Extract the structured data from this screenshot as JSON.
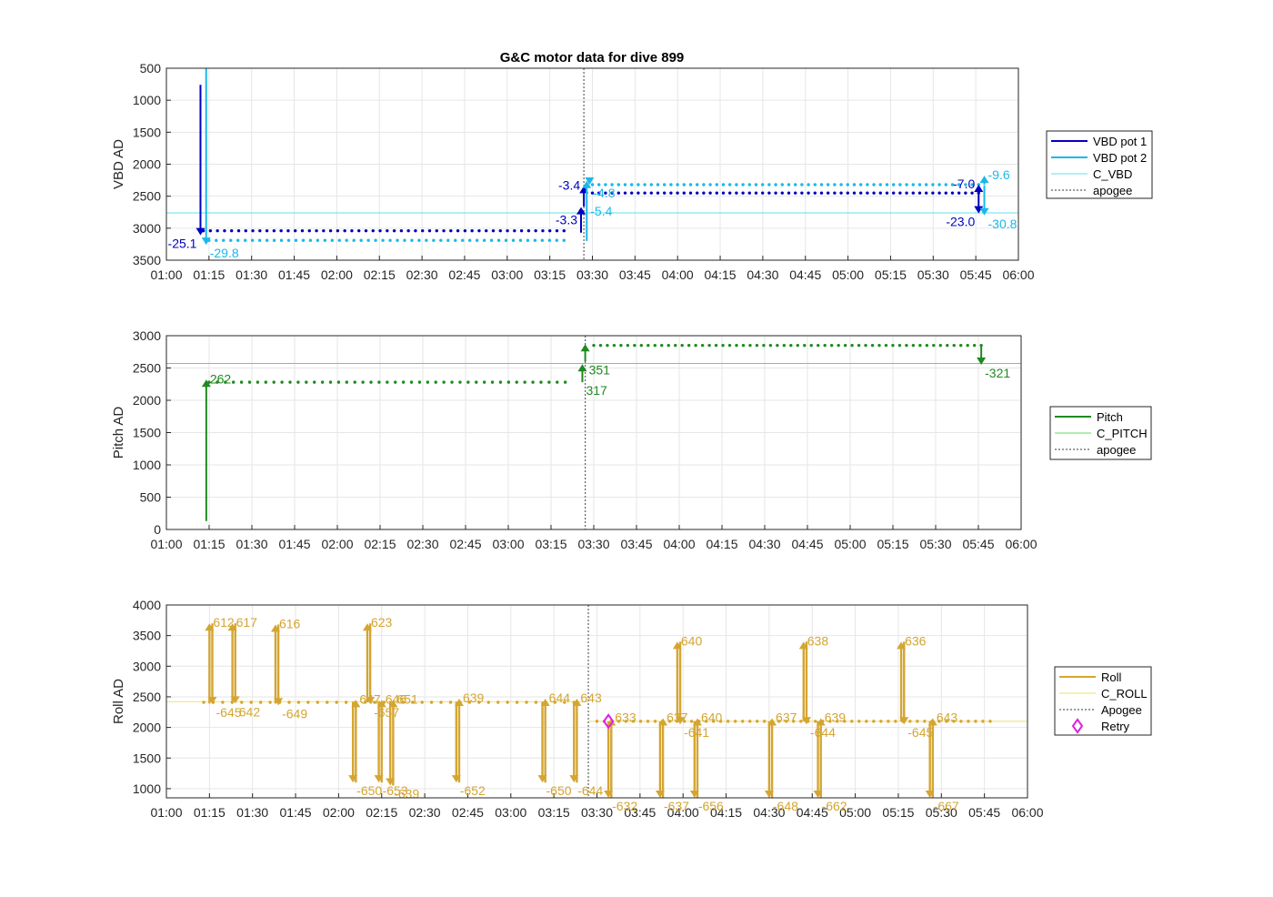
{
  "figure": {
    "title": "G&C motor data for dive 899"
  },
  "colors": {
    "vbd1": "#0000c0",
    "vbd2": "#1ab8ea",
    "c_vbd": "#60e0e8",
    "pitch": "#1f8a1f",
    "c_pitch": "#60dc60",
    "roll": "#d4a531",
    "c_roll": "#f0e58a",
    "retry": "#e020e0",
    "apogee": "#606060"
  },
  "chart_data": [
    {
      "type": "line",
      "title": "G&C motor data for dive 899",
      "ylabel": "VBD AD",
      "xlabel": "",
      "x_ticks": [
        "01:00",
        "01:15",
        "01:30",
        "01:45",
        "02:00",
        "02:15",
        "02:30",
        "02:45",
        "03:00",
        "03:15",
        "03:30",
        "03:45",
        "04:00",
        "04:15",
        "04:30",
        "04:45",
        "05:00",
        "05:15",
        "05:30",
        "05:45",
        "06:00"
      ],
      "xlim": [
        "01:00",
        "06:00"
      ],
      "y_ticks": [
        "500",
        "1000",
        "1500",
        "2000",
        "2500",
        "3000",
        "3500"
      ],
      "ylim": [
        500,
        3500
      ],
      "y_reversed": true,
      "grid": true,
      "legend_position": "right",
      "legend": [
        "VBD pot 1",
        "VBD pot 2",
        "C_VBD",
        "apogee"
      ],
      "apogee": "03:27",
      "reference_line": {
        "name": "C_VBD",
        "value": 2760
      },
      "series": [
        {
          "name": "VBD pot 1",
          "dots": {
            "start": "01:13",
            "end": "03:20",
            "value": 3040,
            "count": 52
          },
          "dots2": {
            "start": "03:30",
            "end": "05:46",
            "value": 2450,
            "count": 60
          }
        },
        {
          "name": "VBD pot 2",
          "dots": {
            "start": "01:15",
            "end": "03:20",
            "value": 3190,
            "count": 50
          },
          "dots2": {
            "start": "03:30",
            "end": "05:46",
            "value": 2320,
            "count": 60
          }
        }
      ],
      "moves": [
        {
          "series": "VBD pot 1",
          "t": "01:12",
          "from": 760,
          "to": 3110,
          "label": "-25.1",
          "label_at": "end"
        },
        {
          "series": "VBD pot 2",
          "t": "01:14",
          "from": 500,
          "to": 3260,
          "label": "-29.8",
          "label_at": "end"
        },
        {
          "series": "VBD pot 1",
          "t": "03:26",
          "from": 3070,
          "to": 2670,
          "label": "-3.3",
          "label_at": "mid"
        },
        {
          "series": "VBD pot 1",
          "t": "03:27",
          "from": 2660,
          "to": 2340,
          "label": "-3.4",
          "label_at": "end"
        },
        {
          "series": "VBD pot 2",
          "t": "03:28",
          "from": 3200,
          "to": 2260,
          "label": "-5.4",
          "label_at": "mid"
        },
        {
          "series": "VBD pot 2",
          "t": "03:29",
          "from": 2300,
          "to": 2320,
          "label": "-4.8",
          "label_at": "end"
        },
        {
          "series": "VBD pot 1",
          "t": "05:46",
          "from": 2450,
          "to": 2320,
          "label": "-7.0",
          "label_at": "end"
        },
        {
          "series": "VBD pot 1",
          "t": "05:46",
          "from": 2460,
          "to": 2770,
          "label": "-23.0",
          "label_at": "end"
        },
        {
          "series": "VBD pot 2",
          "t": "05:48",
          "from": 2320,
          "to": 2180,
          "label": "-9.6",
          "label_at": "end"
        },
        {
          "series": "VBD pot 2",
          "t": "05:48",
          "from": 2330,
          "to": 2800,
          "label": "-30.8",
          "label_at": "end"
        }
      ]
    },
    {
      "type": "line",
      "title": "",
      "ylabel": "Pitch AD",
      "xlabel": "",
      "x_ticks": [
        "01:00",
        "01:15",
        "01:30",
        "01:45",
        "02:00",
        "02:15",
        "02:30",
        "02:45",
        "03:00",
        "03:15",
        "03:30",
        "03:45",
        "04:00",
        "04:15",
        "04:30",
        "04:45",
        "05:00",
        "05:15",
        "05:30",
        "05:45",
        "06:00"
      ],
      "xlim": [
        "01:00",
        "06:00"
      ],
      "y_ticks": [
        "0",
        "500",
        "1000",
        "1500",
        "2000",
        "2500",
        "3000"
      ],
      "ylim": [
        0,
        3000
      ],
      "y_reversed": false,
      "grid": true,
      "legend_position": "right",
      "legend": [
        "Pitch",
        "C_PITCH",
        "apogee"
      ],
      "apogee": "03:27",
      "reference_line": {
        "name": "C_PITCH",
        "value": 2570
      },
      "series": [
        {
          "name": "Pitch",
          "dots": {
            "start": "01:15",
            "end": "03:20",
            "value": 2280,
            "count": 45
          },
          "dots2": {
            "start": "03:30",
            "end": "05:46",
            "value": 2850,
            "count": 58
          }
        }
      ],
      "moves": [
        {
          "series": "Pitch",
          "t": "01:14",
          "from": 130,
          "to": 2320,
          "label": "262",
          "label_at": "end"
        },
        {
          "series": "Pitch",
          "t": "03:26",
          "from": 2280,
          "to": 2560,
          "label": "317",
          "label_at": "start"
        },
        {
          "series": "Pitch",
          "t": "03:27",
          "from": 2600,
          "to": 2870,
          "label": "351",
          "label_at": "start"
        },
        {
          "series": "Pitch",
          "t": "05:46",
          "from": 2850,
          "to": 2550,
          "label": "-321",
          "label_at": "end"
        }
      ]
    },
    {
      "type": "line",
      "title": "",
      "ylabel": "Roll AD",
      "xlabel": "",
      "x_ticks": [
        "01:00",
        "01:15",
        "01:30",
        "01:45",
        "02:00",
        "02:15",
        "02:30",
        "02:45",
        "03:00",
        "03:15",
        "03:30",
        "03:45",
        "04:00",
        "04:15",
        "04:30",
        "04:45",
        "05:00",
        "05:15",
        "05:30",
        "05:45",
        "06:00"
      ],
      "xlim": [
        "01:00",
        "06:00"
      ],
      "y_ticks": [
        "1000",
        "1500",
        "2000",
        "2500",
        "3000",
        "3500",
        "4000"
      ],
      "ylim": [
        850,
        4000
      ],
      "y_reversed": false,
      "grid": true,
      "legend_position": "right",
      "legend": [
        "Roll",
        "C_ROLL",
        "Apogee",
        "Retry"
      ],
      "apogee": "03:27",
      "reference_lines": [
        {
          "name": "C_ROLL",
          "value": 2420,
          "from": "01:00",
          "to": "03:27"
        },
        {
          "name": "C_ROLL",
          "value": 2100,
          "from": "03:27",
          "to": "06:00"
        }
      ],
      "series": [
        {
          "name": "Roll",
          "dots": {
            "start": "01:13",
            "end": "03:22",
            "value": 2410,
            "count": 40
          },
          "dots2": {
            "start": "03:30",
            "end": "05:47",
            "value": 2100,
            "count": 55
          }
        }
      ],
      "retry": {
        "t": "03:34",
        "value": 2100
      },
      "moves": [
        {
          "t": "01:15",
          "from": 2390,
          "to": 3700,
          "label": "612",
          "label_at": "end"
        },
        {
          "t": "01:16",
          "from": 3700,
          "to": 2380,
          "label": "-645",
          "label_at": "end"
        },
        {
          "t": "01:23",
          "from": 2390,
          "to": 3700,
          "label": "617",
          "label_at": "end"
        },
        {
          "t": "01:24",
          "from": 3700,
          "to": 2390,
          "label": "642",
          "label_at": "end"
        },
        {
          "t": "01:38",
          "from": 2390,
          "to": 3680,
          "label": "616",
          "label_at": "end"
        },
        {
          "t": "01:39",
          "from": 3680,
          "to": 2360,
          "label": "-649",
          "label_at": "end"
        },
        {
          "t": "02:05",
          "from": 2420,
          "to": 1100,
          "label": "-650",
          "label_at": "end"
        },
        {
          "t": "02:06",
          "from": 1100,
          "to": 2450,
          "label": "647",
          "label_at": "end"
        },
        {
          "t": "02:10",
          "from": 2410,
          "to": 3700,
          "label": "623",
          "label_at": "end"
        },
        {
          "t": "02:11",
          "from": 3700,
          "to": 2380,
          "label": "-657",
          "label_at": "end"
        },
        {
          "t": "02:14",
          "from": 2430,
          "to": 1100,
          "label": "-653",
          "label_at": "end"
        },
        {
          "t": "02:15",
          "from": 1100,
          "to": 2450,
          "label": "646",
          "label_at": "end"
        },
        {
          "t": "02:18",
          "from": 2430,
          "to": 1050,
          "label": "-639",
          "label_at": "end"
        },
        {
          "t": "02:19",
          "from": 1050,
          "to": 2450,
          "label": "651",
          "label_at": "end"
        },
        {
          "t": "02:41",
          "from": 2420,
          "to": 1100,
          "label": "-652",
          "label_at": "end"
        },
        {
          "t": "02:42",
          "from": 1100,
          "to": 2470,
          "label": "639",
          "label_at": "end"
        },
        {
          "t": "03:11",
          "from": 2420,
          "to": 1100,
          "label": "-650",
          "label_at": "end"
        },
        {
          "t": "03:12",
          "from": 1100,
          "to": 2470,
          "label": "644",
          "label_at": "end"
        },
        {
          "t": "03:22",
          "from": 2420,
          "to": 1100,
          "label": "-644",
          "label_at": "end"
        },
        {
          "t": "03:23",
          "from": 1100,
          "to": 2470,
          "label": "643",
          "label_at": "end"
        },
        {
          "t": "03:34",
          "from": 2100,
          "to": 850,
          "label": "-632",
          "label_at": "end"
        },
        {
          "t": "03:35",
          "from": 850,
          "to": 2150,
          "label": "633",
          "label_at": "end"
        },
        {
          "t": "03:52",
          "from": 2100,
          "to": 850,
          "label": "-637",
          "label_at": "end"
        },
        {
          "t": "03:53",
          "from": 850,
          "to": 2150,
          "label": "637",
          "label_at": "end"
        },
        {
          "t": "03:58",
          "from": 2100,
          "to": 3400,
          "label": "640",
          "label_at": "end"
        },
        {
          "t": "03:59",
          "from": 3400,
          "to": 2050,
          "label": "-641",
          "label_at": "end"
        },
        {
          "t": "04:04",
          "from": 2100,
          "to": 850,
          "label": "-656",
          "label_at": "end"
        },
        {
          "t": "04:05",
          "from": 850,
          "to": 2150,
          "label": "640",
          "label_at": "end"
        },
        {
          "t": "04:30",
          "from": 2100,
          "to": 850,
          "label": "-648",
          "label_at": "end"
        },
        {
          "t": "04:31",
          "from": 850,
          "to": 2150,
          "label": "637",
          "label_at": "end"
        },
        {
          "t": "04:42",
          "from": 2100,
          "to": 3400,
          "label": "638",
          "label_at": "end"
        },
        {
          "t": "04:43",
          "from": 3400,
          "to": 2050,
          "label": "-644",
          "label_at": "end"
        },
        {
          "t": "04:47",
          "from": 2100,
          "to": 850,
          "label": "-662",
          "label_at": "end"
        },
        {
          "t": "04:48",
          "from": 850,
          "to": 2150,
          "label": "639",
          "label_at": "end"
        },
        {
          "t": "05:16",
          "from": 2100,
          "to": 3400,
          "label": "636",
          "label_at": "end"
        },
        {
          "t": "05:17",
          "from": 3400,
          "to": 2050,
          "label": "-645",
          "label_at": "end"
        },
        {
          "t": "05:26",
          "from": 2100,
          "to": 850,
          "label": "-667",
          "label_at": "end"
        },
        {
          "t": "05:27",
          "from": 850,
          "to": 2150,
          "label": "643",
          "label_at": "end"
        }
      ]
    }
  ]
}
